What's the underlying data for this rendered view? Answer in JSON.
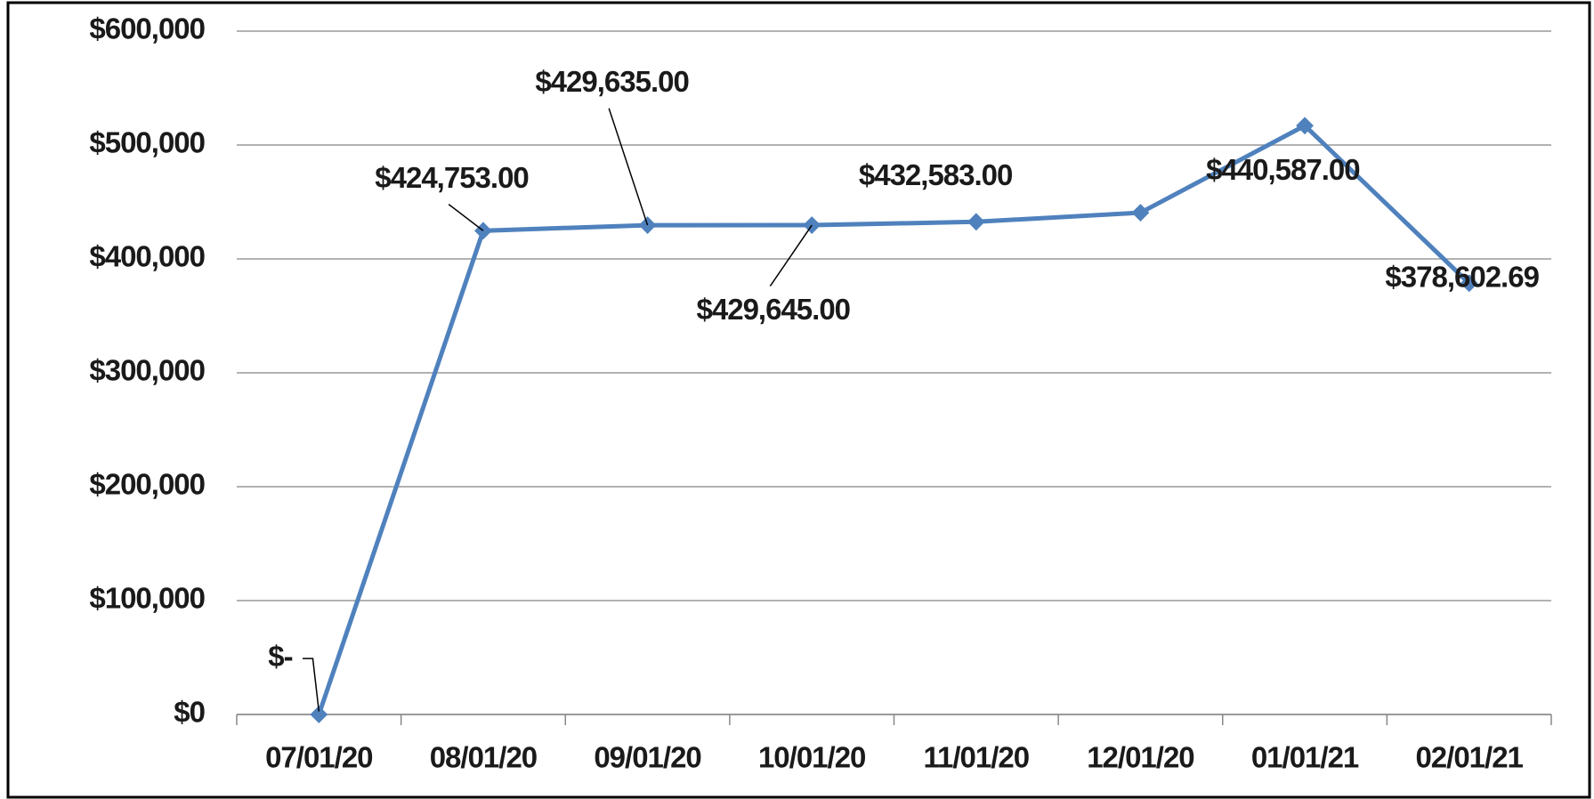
{
  "chart_data": {
    "type": "line",
    "categories": [
      "07/01/20",
      "08/01/20",
      "09/01/20",
      "10/01/20",
      "11/01/20",
      "12/01/20",
      "01/01/21",
      "02/01/21"
    ],
    "series": [
      {
        "color": "#4f81bd",
        "values": [
          0,
          424753,
          429635,
          429645,
          432583,
          440587,
          517000,
          378602.69
        ],
        "value_labels": [
          "$-",
          "$424,753.00",
          "$429,635.00",
          "$429,645.00",
          "$432,583.00",
          "$440,587.00",
          null,
          "$378,602.69"
        ]
      }
    ],
    "ylim": [
      0,
      600000
    ],
    "yticks": [
      {
        "value": 0,
        "label": "$0"
      },
      {
        "value": 100000,
        "label": "$100,000"
      },
      {
        "value": 200000,
        "label": "$200,000"
      },
      {
        "value": 300000,
        "label": "$300,000"
      },
      {
        "value": 400000,
        "label": "$400,000"
      },
      {
        "value": 500000,
        "label": "$500,000"
      },
      {
        "value": 600000,
        "label": "$600,000"
      }
    ],
    "grid": true
  }
}
